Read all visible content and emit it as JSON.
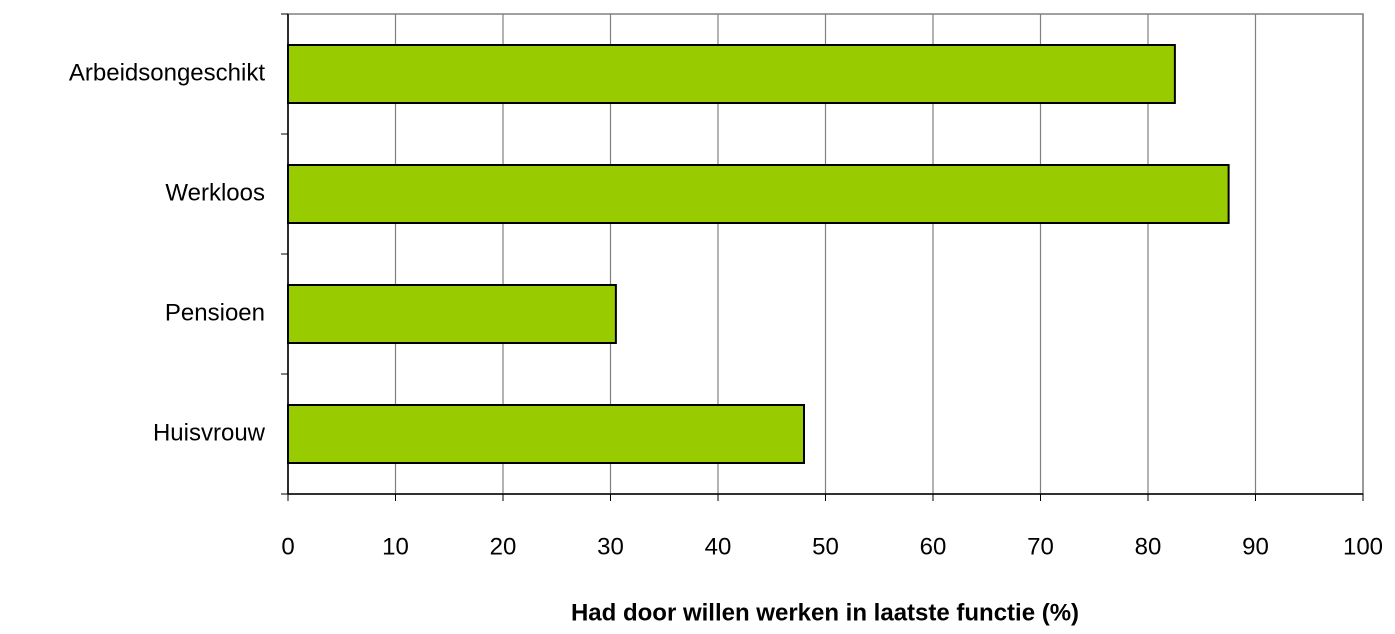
{
  "chart_data": {
    "type": "hbar",
    "categories": [
      "Arbeidsongeschikt",
      "Werkloos",
      "Pensioen",
      "Huisvrouw"
    ],
    "values": [
      82.5,
      87.5,
      30.5,
      48
    ],
    "color": "#99cc00",
    "xlabel": "Had door willen werken in laatste functie (%)",
    "xlim": [
      0,
      100
    ],
    "xticks": [
      0,
      10,
      20,
      30,
      40,
      50,
      60,
      70,
      80,
      90,
      100
    ],
    "grid": true
  }
}
